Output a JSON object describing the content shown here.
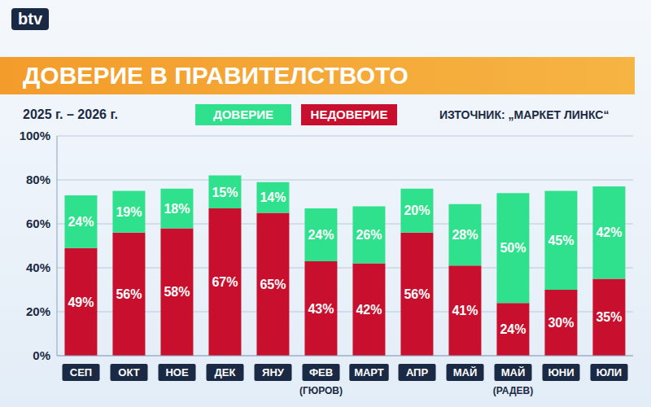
{
  "chart_data": {
    "type": "bar",
    "title": "ДОВЕРИЕ В ПРАВИТЕЛСТВОТО",
    "subtitle": "2025 г. – 2026 г.",
    "source": "ИЗТОЧНИК: „МАРКЕТ ЛИНКС“",
    "channel": "btv",
    "categories": [
      "СЕП",
      "ОКТ",
      "НОЕ",
      "ДЕК",
      "ЯНУ",
      "ФЕВ",
      "МАРТ",
      "АПР",
      "МАЙ",
      "МАЙ",
      "ЮНИ",
      "ЮЛИ"
    ],
    "category_notes": [
      null,
      null,
      null,
      null,
      null,
      "(ГЮРОВ)",
      null,
      null,
      null,
      "(РАДЕВ)",
      null,
      null
    ],
    "series": [
      {
        "name": "ДОВЕРИЕ",
        "color": "#2fe08c",
        "values": [
          24,
          19,
          18,
          15,
          14,
          24,
          26,
          20,
          28,
          50,
          45,
          42
        ],
        "value_labels": [
          "24%",
          "19%",
          "18%",
          "15%",
          "14%",
          "24%",
          "26%",
          "20%",
          "28%",
          "50%",
          "45%",
          "42%"
        ]
      },
      {
        "name": "НЕДОВЕРИЕ",
        "color": "#c8102e",
        "values": [
          49,
          56,
          58,
          67,
          65,
          43,
          42,
          56,
          41,
          24,
          30,
          35
        ],
        "value_labels": [
          "49%",
          "56%",
          "58%",
          "67%",
          "65%",
          "43%",
          "42%",
          "56%",
          "41%",
          "24%",
          "30%",
          "35%"
        ]
      }
    ],
    "ylim": [
      0,
      100
    ],
    "yticks": [
      {
        "value": 0,
        "label": "0%"
      },
      {
        "value": 20,
        "label": "20%"
      },
      {
        "value": 40,
        "label": "40%"
      },
      {
        "value": 60,
        "label": "60%"
      },
      {
        "value": 80,
        "label": "80%"
      },
      {
        "value": 100,
        "label": "100%"
      }
    ],
    "stacked": true,
    "data_labels": true,
    "grid": true,
    "legend": "top"
  }
}
